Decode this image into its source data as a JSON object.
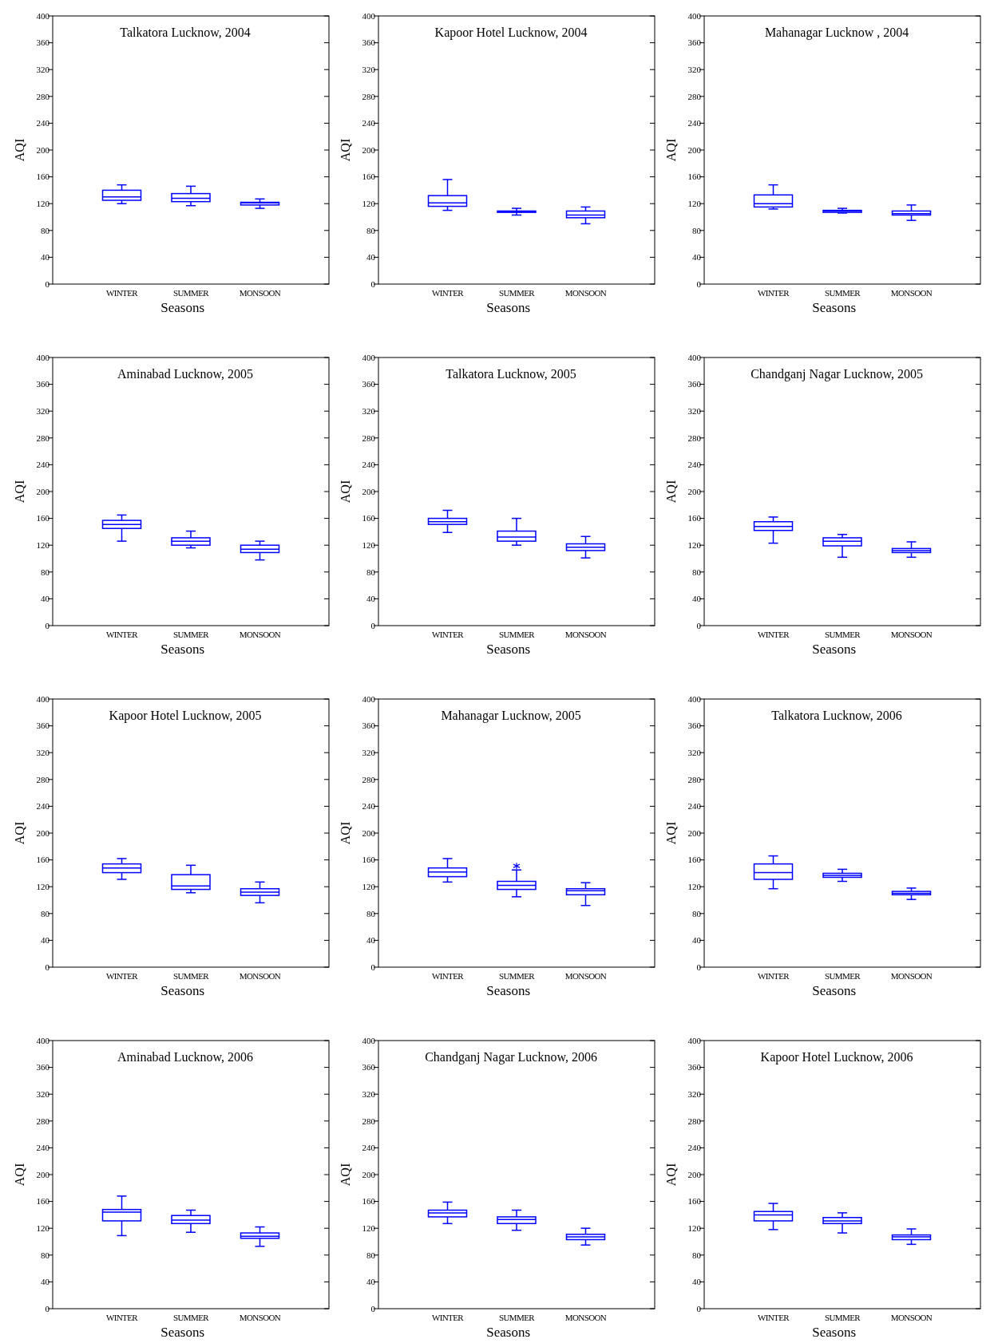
{
  "chart_data": [
    {
      "type": "box",
      "title": "Talkatora Lucknow, 2004",
      "xlabel": "Seasons",
      "ylabel": "AQI",
      "categories": [
        "WINTER",
        "SUMMER",
        "MONSOON"
      ],
      "color": "#0000ff",
      "ylim": [
        0,
        400
      ],
      "yticks": [
        0,
        40,
        80,
        120,
        160,
        200,
        240,
        280,
        320,
        360,
        400
      ],
      "boxes": [
        {
          "low": 120,
          "q1": 125,
          "median": 130,
          "q3": 140,
          "high": 148
        },
        {
          "low": 117,
          "q1": 123,
          "median": 128,
          "q3": 135,
          "high": 146
        },
        {
          "low": 113,
          "q1": 118,
          "median": 121,
          "q3": 122,
          "high": 127
        }
      ]
    },
    {
      "type": "box",
      "title": "Kapoor Hotel Lucknow, 2004",
      "xlabel": "Seasons",
      "ylabel": "AQI",
      "categories": [
        "WINTER",
        "SUMMER",
        "MONSOON"
      ],
      "color": "#0000ff",
      "ylim": [
        0,
        400
      ],
      "yticks": [
        0,
        40,
        80,
        120,
        160,
        200,
        240,
        280,
        320,
        360,
        400
      ],
      "boxes": [
        {
          "low": 110,
          "q1": 116,
          "median": 121,
          "q3": 132,
          "high": 156
        },
        {
          "low": 103,
          "q1": 107,
          "median": 108,
          "q3": 109,
          "high": 113
        },
        {
          "low": 90,
          "q1": 99,
          "median": 103,
          "q3": 109,
          "high": 115
        }
      ]
    },
    {
      "type": "box",
      "title": "Mahanagar Lucknow , 2004",
      "xlabel": "Seasons",
      "ylabel": "AQI",
      "categories": [
        "WINTER",
        "SUMMER",
        "MONSOON"
      ],
      "color": "#0000ff",
      "ylim": [
        0,
        400
      ],
      "yticks": [
        0,
        40,
        80,
        120,
        160,
        200,
        240,
        280,
        320,
        360,
        400
      ],
      "boxes": [
        {
          "low": 112,
          "q1": 115,
          "median": 120,
          "q3": 133,
          "high": 148
        },
        {
          "low": 106,
          "q1": 107,
          "median": 109,
          "q3": 110,
          "high": 113
        },
        {
          "low": 95,
          "q1": 103,
          "median": 105,
          "q3": 109,
          "high": 118
        }
      ]
    },
    {
      "type": "box",
      "title": "Aminabad Lucknow, 2005",
      "xlabel": "Seasons",
      "ylabel": "AQI",
      "categories": [
        "WINTER",
        "SUMMER",
        "MONSOON"
      ],
      "color": "#0000ff",
      "ylim": [
        0,
        400
      ],
      "yticks": [
        0,
        40,
        80,
        120,
        160,
        200,
        240,
        280,
        320,
        360,
        400
      ],
      "boxes": [
        {
          "low": 126,
          "q1": 145,
          "median": 151,
          "q3": 157,
          "high": 165
        },
        {
          "low": 116,
          "q1": 120,
          "median": 126,
          "q3": 131,
          "high": 141
        },
        {
          "low": 98,
          "q1": 109,
          "median": 114,
          "q3": 120,
          "high": 126
        }
      ]
    },
    {
      "type": "box",
      "title": "Talkatora Lucknow, 2005",
      "xlabel": "Seasons",
      "ylabel": "AQI",
      "categories": [
        "WINTER",
        "SUMMER",
        "MONSOON"
      ],
      "color": "#0000ff",
      "ylim": [
        0,
        400
      ],
      "yticks": [
        0,
        40,
        80,
        120,
        160,
        200,
        240,
        280,
        320,
        360,
        400
      ],
      "boxes": [
        {
          "low": 139,
          "q1": 151,
          "median": 155,
          "q3": 160,
          "high": 172
        },
        {
          "low": 120,
          "q1": 126,
          "median": 132,
          "q3": 141,
          "high": 160
        },
        {
          "low": 101,
          "q1": 112,
          "median": 117,
          "q3": 122,
          "high": 133
        }
      ]
    },
    {
      "type": "box",
      "title": "Chandganj Nagar Lucknow, 2005",
      "xlabel": "Seasons",
      "ylabel": "AQI",
      "categories": [
        "WINTER",
        "SUMMER",
        "MONSOON"
      ],
      "color": "#0000ff",
      "ylim": [
        0,
        400
      ],
      "yticks": [
        0,
        40,
        80,
        120,
        160,
        200,
        240,
        280,
        320,
        360,
        400
      ],
      "boxes": [
        {
          "low": 123,
          "q1": 142,
          "median": 148,
          "q3": 155,
          "high": 162
        },
        {
          "low": 102,
          "q1": 119,
          "median": 126,
          "q3": 131,
          "high": 136
        },
        {
          "low": 102,
          "q1": 109,
          "median": 112,
          "q3": 115,
          "high": 125
        }
      ]
    },
    {
      "type": "box",
      "title": "Kapoor Hotel Lucknow, 2005",
      "xlabel": "Seasons",
      "ylabel": "AQI",
      "categories": [
        "WINTER",
        "SUMMER",
        "MONSOON"
      ],
      "color": "#0000ff",
      "ylim": [
        0,
        400
      ],
      "yticks": [
        0,
        40,
        80,
        120,
        160,
        200,
        240,
        280,
        320,
        360,
        400
      ],
      "boxes": [
        {
          "low": 131,
          "q1": 141,
          "median": 148,
          "q3": 154,
          "high": 162
        },
        {
          "low": 111,
          "q1": 116,
          "median": 121,
          "q3": 138,
          "high": 152
        },
        {
          "low": 96,
          "q1": 107,
          "median": 112,
          "q3": 117,
          "high": 127
        }
      ]
    },
    {
      "type": "box",
      "title": "Mahanagar Lucknow, 2005",
      "xlabel": "Seasons",
      "ylabel": "AQI",
      "categories": [
        "WINTER",
        "SUMMER",
        "MONSOON"
      ],
      "color": "#0000ff",
      "ylim": [
        0,
        400
      ],
      "yticks": [
        0,
        40,
        80,
        120,
        160,
        200,
        240,
        280,
        320,
        360,
        400
      ],
      "boxes": [
        {
          "low": 127,
          "q1": 135,
          "median": 142,
          "q3": 148,
          "high": 162
        },
        {
          "low": 105,
          "q1": 116,
          "median": 122,
          "q3": 128,
          "high": 145,
          "outliers": [
            151
          ]
        },
        {
          "low": 92,
          "q1": 108,
          "median": 114,
          "q3": 117,
          "high": 126
        }
      ]
    },
    {
      "type": "box",
      "title": "Talkatora Lucknow, 2006",
      "xlabel": "Seasons",
      "ylabel": "AQI",
      "categories": [
        "WINTER",
        "SUMMER",
        "MONSOON"
      ],
      "color": "#0000ff",
      "ylim": [
        0,
        400
      ],
      "yticks": [
        0,
        40,
        80,
        120,
        160,
        200,
        240,
        280,
        320,
        360,
        400
      ],
      "boxes": [
        {
          "low": 117,
          "q1": 131,
          "median": 141,
          "q3": 154,
          "high": 166
        },
        {
          "low": 128,
          "q1": 134,
          "median": 137,
          "q3": 140,
          "high": 146
        },
        {
          "low": 101,
          "q1": 108,
          "median": 110,
          "q3": 113,
          "high": 118
        }
      ]
    },
    {
      "type": "box",
      "title": "Aminabad Lucknow, 2006",
      "xlabel": "Seasons",
      "ylabel": "AQI",
      "categories": [
        "WINTER",
        "SUMMER",
        "MONSOON"
      ],
      "color": "#0000ff",
      "ylim": [
        0,
        400
      ],
      "yticks": [
        0,
        40,
        80,
        120,
        160,
        200,
        240,
        280,
        320,
        360,
        400
      ],
      "boxes": [
        {
          "low": 109,
          "q1": 131,
          "median": 144,
          "q3": 148,
          "high": 168
        },
        {
          "low": 114,
          "q1": 127,
          "median": 132,
          "q3": 139,
          "high": 147
        },
        {
          "low": 93,
          "q1": 105,
          "median": 108,
          "q3": 113,
          "high": 122
        }
      ]
    },
    {
      "type": "box",
      "title": "Chandganj Nagar Lucknow, 2006",
      "xlabel": "Seasons",
      "ylabel": "AQI",
      "categories": [
        "WINTER",
        "SUMMER",
        "MONSOON"
      ],
      "color": "#0000ff",
      "ylim": [
        0,
        400
      ],
      "yticks": [
        0,
        40,
        80,
        120,
        160,
        200,
        240,
        280,
        320,
        360,
        400
      ],
      "boxes": [
        {
          "low": 127,
          "q1": 137,
          "median": 143,
          "q3": 147,
          "high": 159
        },
        {
          "low": 117,
          "q1": 127,
          "median": 133,
          "q3": 137,
          "high": 147
        },
        {
          "low": 95,
          "q1": 103,
          "median": 107,
          "q3": 111,
          "high": 120
        }
      ]
    },
    {
      "type": "box",
      "title": "Kapoor Hotel Lucknow, 2006",
      "xlabel": "Seasons",
      "ylabel": "AQI",
      "categories": [
        "WINTER",
        "SUMMER",
        "MONSOON"
      ],
      "color": "#0000ff",
      "ylim": [
        0,
        400
      ],
      "yticks": [
        0,
        40,
        80,
        120,
        160,
        200,
        240,
        280,
        320,
        360,
        400
      ],
      "boxes": [
        {
          "low": 118,
          "q1": 131,
          "median": 140,
          "q3": 145,
          "high": 157
        },
        {
          "low": 113,
          "q1": 127,
          "median": 131,
          "q3": 136,
          "high": 143
        },
        {
          "low": 96,
          "q1": 103,
          "median": 107,
          "q3": 110,
          "high": 119
        }
      ]
    }
  ]
}
